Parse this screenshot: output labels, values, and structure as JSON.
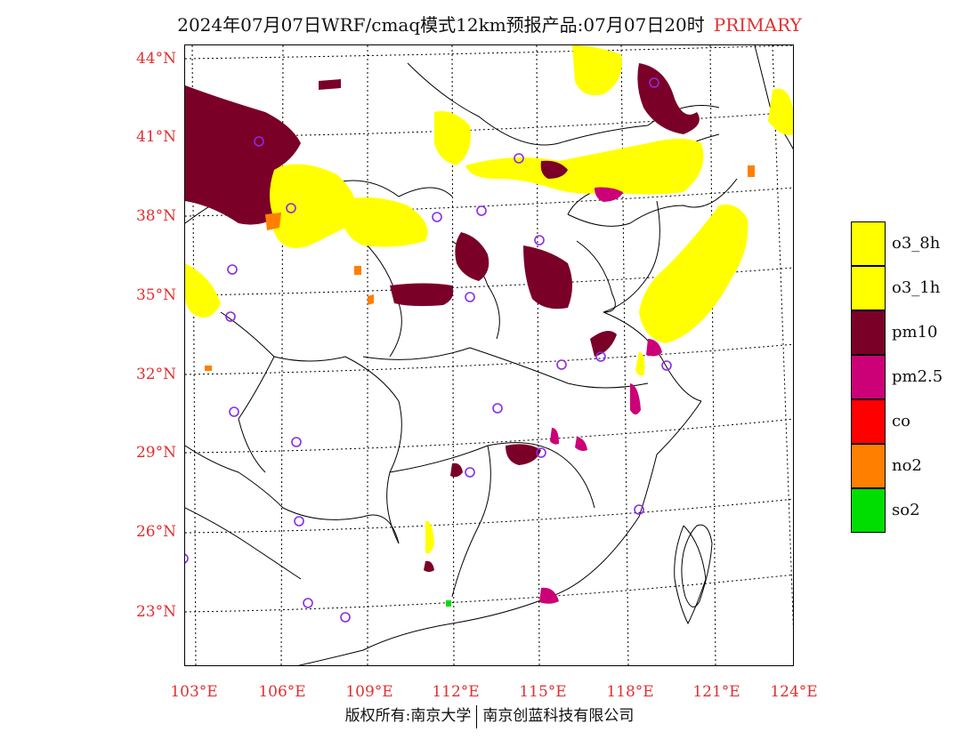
{
  "header": {
    "title": "2024年07月07日WRF/cmaq模式12km预报产品:07月07日20时",
    "tag": "PRIMARY"
  },
  "axes": {
    "lat_labels": [
      "44°N",
      "41°N",
      "38°N",
      "35°N",
      "32°N",
      "29°N",
      "26°N",
      "23°N"
    ],
    "lon_labels": [
      "103°E",
      "106°E",
      "109°E",
      "112°E",
      "115°E",
      "118°E",
      "121°E",
      "124°E"
    ]
  },
  "legend": {
    "items": [
      {
        "label": "o3_8h",
        "color": "#ffff00"
      },
      {
        "label": "o3_1h",
        "color": "#ffff00"
      },
      {
        "label": "pm10",
        "color": "#7a0028"
      },
      {
        "label": "pm2.5",
        "color": "#cc0077"
      },
      {
        "label": "co",
        "color": "#ff0000"
      },
      {
        "label": "no2",
        "color": "#ff7f00"
      },
      {
        "label": "so2",
        "color": "#00dd00"
      }
    ]
  },
  "footer": {
    "left": "版权所有:南京大学",
    "right": "南京创蓝科技有限公司"
  },
  "colors": {
    "o3": "#ffff00",
    "pm10": "#7a0028",
    "pm25": "#cc0077",
    "no2": "#ff7f00",
    "so2": "#00dd00",
    "station_ring": "#8a2be2",
    "axis_label": "#e03030"
  }
}
